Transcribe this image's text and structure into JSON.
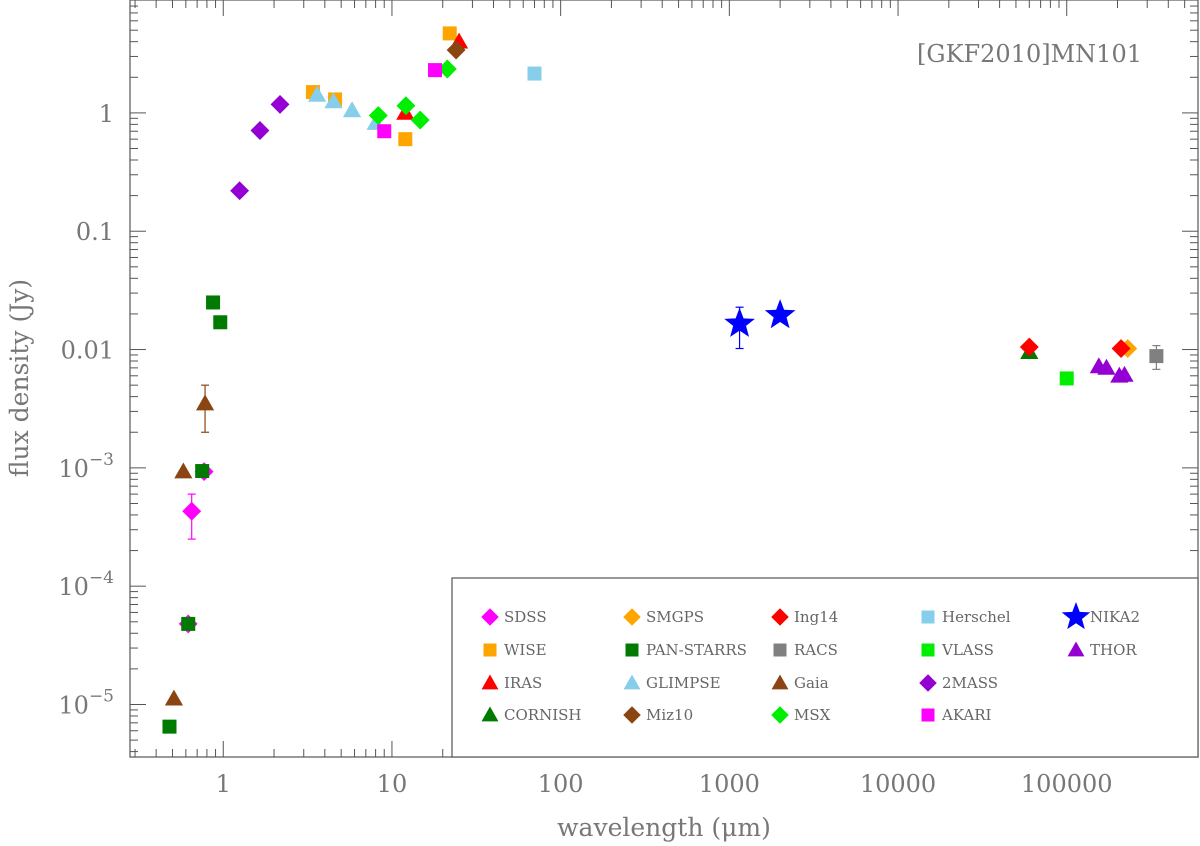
{
  "chart_data": {
    "type": "scatter",
    "title": "[GKF2010]MN101",
    "xlabel": "wavelength (μm)",
    "ylabel": "flux density (Jy)",
    "xscale": "log",
    "yscale": "log",
    "xlim": [
      0.28,
      600000
    ],
    "ylim": [
      3.6e-06,
      9
    ],
    "x_ticks": [
      {
        "value": 1,
        "label": "1"
      },
      {
        "value": 10,
        "label": "10"
      },
      {
        "value": 100,
        "label": "100"
      },
      {
        "value": 1000,
        "label": "1000"
      },
      {
        "value": 10000,
        "label": "10000"
      },
      {
        "value": 100000,
        "label": "100000"
      }
    ],
    "y_ticks": [
      {
        "value": 1e-05,
        "base": "10",
        "exp": "−5"
      },
      {
        "value": 0.0001,
        "base": "10",
        "exp": "−4"
      },
      {
        "value": 0.001,
        "base": "10",
        "exp": "−3"
      },
      {
        "value": 0.01,
        "label": "0.01"
      },
      {
        "value": 0.1,
        "label": "0.1"
      },
      {
        "value": 1,
        "label": "1"
      }
    ],
    "legend_position": "bottom-right",
    "series": [
      {
        "name": "SDSS",
        "marker": "diamond",
        "color": "#ff00ff",
        "points": [
          {
            "x": 0.62,
            "y": 4.8e-05
          },
          {
            "x": 0.65,
            "y": 0.00043,
            "err": [
              0.00025,
              0.0006
            ]
          },
          {
            "x": 0.77,
            "y": 0.00093
          }
        ]
      },
      {
        "name": "WISE",
        "marker": "square",
        "color": "#ffa500",
        "points": [
          {
            "x": 3.4,
            "y": 1.5
          },
          {
            "x": 4.6,
            "y": 1.3
          },
          {
            "x": 12,
            "y": 0.6
          },
          {
            "x": 22,
            "y": 4.7
          }
        ]
      },
      {
        "name": "IRAS",
        "marker": "triangle",
        "color": "#ff0000",
        "points": [
          {
            "x": 12,
            "y": 1.0
          },
          {
            "x": 25,
            "y": 4.0
          }
        ]
      },
      {
        "name": "CORNISH",
        "marker": "triangle",
        "color": "#007a00",
        "points": [
          {
            "x": 60000,
            "y": 0.0095
          }
        ]
      },
      {
        "name": "SMGPS",
        "marker": "diamond",
        "color": "#ffa500",
        "points": [
          {
            "x": 230000,
            "y": 0.0102
          }
        ]
      },
      {
        "name": "PAN-STARRS",
        "marker": "square",
        "color": "#007a00",
        "points": [
          {
            "x": 0.48,
            "y": 6.5e-06
          },
          {
            "x": 0.62,
            "y": 4.8e-05
          },
          {
            "x": 0.75,
            "y": 0.00094
          },
          {
            "x": 0.87,
            "y": 0.025
          },
          {
            "x": 0.96,
            "y": 0.017
          }
        ]
      },
      {
        "name": "GLIMPSE",
        "marker": "triangle",
        "color": "#87ceeb",
        "points": [
          {
            "x": 3.6,
            "y": 1.42
          },
          {
            "x": 4.5,
            "y": 1.25
          },
          {
            "x": 5.8,
            "y": 1.05
          },
          {
            "x": 8.0,
            "y": 0.82
          }
        ]
      },
      {
        "name": "Miz10",
        "marker": "diamond",
        "color": "#8b4513",
        "points": [
          {
            "x": 24,
            "y": 3.4
          }
        ]
      },
      {
        "name": "Ing14",
        "marker": "diamond",
        "color": "#ff0000",
        "points": [
          {
            "x": 60000,
            "y": 0.0105
          },
          {
            "x": 210000,
            "y": 0.0102
          }
        ]
      },
      {
        "name": "RACS",
        "marker": "square",
        "color": "#808080",
        "points": [
          {
            "x": 340000,
            "y": 0.0088,
            "err": [
              0.0068,
              0.0108
            ]
          }
        ]
      },
      {
        "name": "Gaia",
        "marker": "triangle",
        "color": "#8b4513",
        "points": [
          {
            "x": 0.51,
            "y": 1.12e-05
          },
          {
            "x": 0.58,
            "y": 0.00093
          },
          {
            "x": 0.78,
            "y": 0.0035,
            "err": [
              0.002,
              0.005
            ]
          }
        ]
      },
      {
        "name": "MSX",
        "marker": "diamond",
        "color": "#00ee00",
        "points": [
          {
            "x": 8.3,
            "y": 0.95
          },
          {
            "x": 12.1,
            "y": 1.15
          },
          {
            "x": 14.7,
            "y": 0.87
          },
          {
            "x": 21.3,
            "y": 2.35
          }
        ]
      },
      {
        "name": "Herschel",
        "marker": "square",
        "color": "#87ceeb",
        "points": [
          {
            "x": 70,
            "y": 2.15
          }
        ]
      },
      {
        "name": "VLASS",
        "marker": "square",
        "color": "#00ee00",
        "points": [
          {
            "x": 100000,
            "y": 0.0057
          }
        ]
      },
      {
        "name": "2MASS",
        "marker": "diamond",
        "color": "#9400d3",
        "points": [
          {
            "x": 1.25,
            "y": 0.22
          },
          {
            "x": 1.65,
            "y": 0.71
          },
          {
            "x": 2.17,
            "y": 1.18
          }
        ]
      },
      {
        "name": "AKARI",
        "marker": "square",
        "color": "#ff00ff",
        "points": [
          {
            "x": 9,
            "y": 0.7
          },
          {
            "x": 18,
            "y": 2.3
          }
        ]
      },
      {
        "name": "NIKA2",
        "marker": "star",
        "color": "#0000ff",
        "points": [
          {
            "x": 1150,
            "y": 0.0165,
            "err": [
              0.0102,
              0.0228
            ]
          },
          {
            "x": 2000,
            "y": 0.0195
          }
        ]
      },
      {
        "name": "THOR",
        "marker": "triangle",
        "color": "#9400d3",
        "points": [
          {
            "x": 155000,
            "y": 0.0072
          },
          {
            "x": 172000,
            "y": 0.007
          },
          {
            "x": 205000,
            "y": 0.006
          },
          {
            "x": 220000,
            "y": 0.0061
          }
        ]
      }
    ]
  }
}
